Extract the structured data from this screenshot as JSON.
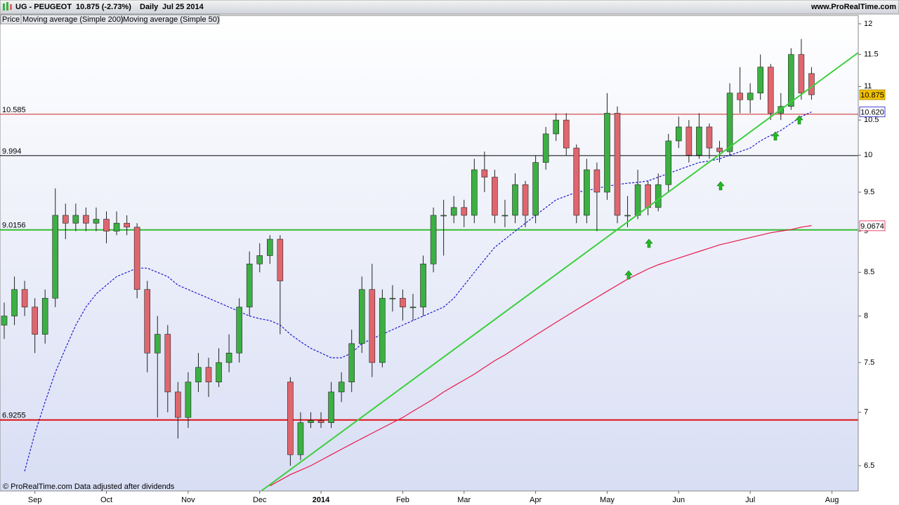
{
  "header": {
    "symbol": "UG - PEUGEOT",
    "quote": "10.875 (-2.73%)",
    "period": "Daily",
    "date": "Jul 25 2014",
    "site": "www.ProRealTime.com"
  },
  "footer": "© ProRealTime.com  Data adjusted after dividends",
  "chart_data": {
    "type": "candlestick",
    "log_scale": true,
    "ylim": [
      6.276,
      12.14
    ],
    "yticks": [
      6.5,
      7,
      7.5,
      8,
      8.5,
      9,
      9.5,
      10,
      10.5,
      11,
      11.5,
      12
    ],
    "categories": [
      null,
      null,
      null,
      "Sep",
      null,
      null,
      null,
      null,
      null,
      null,
      "Oct",
      null,
      null,
      null,
      null,
      null,
      null,
      null,
      "Nov",
      null,
      null,
      null,
      null,
      null,
      null,
      "Dec",
      null,
      null,
      null,
      null,
      null,
      "2014",
      null,
      null,
      null,
      null,
      null,
      null,
      null,
      "Feb",
      null,
      null,
      null,
      null,
      null,
      "Mar",
      null,
      null,
      null,
      null,
      null,
      null,
      "Apr",
      null,
      null,
      null,
      null,
      null,
      null,
      "May",
      null,
      null,
      null,
      null,
      null,
      null,
      "Jun",
      null,
      null,
      null,
      null,
      null,
      null,
      "Jul",
      null,
      null,
      null,
      null,
      null,
      null,
      null,
      "Aug"
    ],
    "candles": {
      "name": "Price",
      "up_color": "#3cb043",
      "down_color": "#e0666e",
      "open": [
        7.9,
        8.0,
        8.3,
        8.1,
        7.8,
        8.2,
        9.2,
        9.1,
        9.2,
        9.1,
        9.15,
        9.0,
        9.1,
        9.05,
        8.3,
        7.6,
        7.8,
        7.2,
        6.95,
        7.3,
        7.45,
        7.3,
        7.5,
        7.6,
        8.1,
        8.6,
        8.7,
        8.9,
        7.3,
        6.6,
        6.9,
        6.92,
        6.9,
        7.2,
        7.3,
        7.7,
        8.3,
        7.5,
        8.2,
        8.2,
        8.1,
        8.1,
        8.6,
        9.2,
        9.2,
        9.3,
        9.2,
        9.8,
        9.7,
        9.2,
        9.2,
        9.6,
        9.2,
        9.9,
        10.3,
        10.5,
        10.1,
        9.2,
        9.8,
        9.5,
        10.6,
        9.2,
        9.2,
        9.6,
        9.3,
        9.6,
        10.2,
        10.4,
        10.0,
        10.4,
        10.1,
        10.05,
        10.9,
        10.8,
        10.9,
        11.3,
        10.6,
        10.7,
        11.5,
        11.2,
        null,
        null
      ],
      "high": [
        8.15,
        8.45,
        8.4,
        8.2,
        8.3,
        9.55,
        9.35,
        9.35,
        9.3,
        9.3,
        9.25,
        9.25,
        9.2,
        9.1,
        8.4,
        8.0,
        7.9,
        7.3,
        7.4,
        7.6,
        7.55,
        7.65,
        7.8,
        8.2,
        8.75,
        8.85,
        8.95,
        8.95,
        7.35,
        7.0,
        7.0,
        7.0,
        7.3,
        7.4,
        7.85,
        8.45,
        8.6,
        8.3,
        8.35,
        8.3,
        8.25,
        8.7,
        9.3,
        9.4,
        9.45,
        9.4,
        9.95,
        10.05,
        9.8,
        9.4,
        9.75,
        9.65,
        10.0,
        10.4,
        10.6,
        10.6,
        10.15,
        9.95,
        9.9,
        10.9,
        10.7,
        9.45,
        9.8,
        9.65,
        9.75,
        10.3,
        10.55,
        10.5,
        10.6,
        10.45,
        10.2,
        11.05,
        11.3,
        11.05,
        11.5,
        11.35,
        10.9,
        11.6,
        11.75,
        11.3,
        null,
        null
      ],
      "low": [
        7.75,
        7.9,
        8.0,
        7.6,
        7.7,
        8.1,
        8.9,
        9.0,
        9.0,
        9.0,
        8.85,
        8.95,
        8.95,
        8.2,
        7.4,
        6.95,
        7.0,
        6.75,
        6.85,
        7.2,
        7.15,
        7.25,
        7.4,
        7.5,
        8.0,
        8.5,
        8.6,
        7.8,
        6.5,
        6.55,
        6.85,
        6.85,
        6.85,
        7.1,
        7.2,
        7.6,
        7.35,
        7.45,
        8.05,
        7.95,
        7.95,
        8.0,
        8.5,
        8.7,
        9.1,
        9.05,
        9.1,
        9.5,
        9.1,
        9.05,
        9.1,
        9.05,
        9.1,
        9.8,
        10.2,
        10.0,
        9.1,
        9.1,
        9.0,
        9.4,
        9.1,
        9.05,
        9.15,
        9.2,
        9.25,
        9.5,
        10.1,
        9.9,
        9.95,
        9.95,
        9.9,
        10.0,
        10.6,
        10.6,
        10.8,
        10.5,
        10.5,
        10.65,
        10.8,
        10.8,
        null,
        null
      ],
      "close": [
        8.0,
        8.3,
        8.1,
        7.8,
        8.2,
        9.2,
        9.1,
        9.2,
        9.1,
        9.15,
        9.0,
        9.1,
        9.05,
        8.3,
        7.6,
        7.8,
        7.2,
        6.95,
        7.3,
        7.45,
        7.3,
        7.5,
        7.6,
        8.1,
        8.6,
        8.7,
        8.9,
        8.4,
        6.6,
        6.9,
        6.92,
        6.9,
        7.2,
        7.3,
        7.7,
        8.3,
        7.5,
        8.2,
        8.2,
        8.1,
        8.1,
        8.6,
        9.2,
        9.2,
        9.3,
        9.2,
        9.8,
        9.7,
        9.2,
        9.2,
        9.6,
        9.2,
        9.9,
        10.3,
        10.5,
        10.1,
        9.2,
        9.8,
        9.5,
        10.6,
        9.2,
        9.2,
        9.6,
        9.3,
        9.6,
        10.2,
        10.4,
        10.0,
        10.4,
        10.1,
        10.05,
        10.9,
        10.8,
        10.9,
        11.3,
        10.6,
        10.7,
        11.5,
        10.9,
        10.875,
        null,
        null
      ]
    },
    "series": [
      {
        "name": "Moving average (Simple 200)",
        "color": "#e8194a",
        "dashed": false,
        "values": [
          null,
          null,
          null,
          null,
          null,
          null,
          null,
          null,
          null,
          null,
          null,
          null,
          null,
          null,
          null,
          null,
          null,
          null,
          null,
          null,
          null,
          null,
          null,
          null,
          null,
          null,
          6.32,
          6.37,
          6.42,
          6.46,
          6.5,
          6.55,
          6.6,
          6.65,
          6.7,
          6.75,
          6.8,
          6.85,
          6.9,
          6.95,
          7.01,
          7.07,
          7.13,
          7.2,
          7.26,
          7.32,
          7.38,
          7.45,
          7.52,
          7.58,
          7.65,
          7.72,
          7.79,
          7.86,
          7.93,
          8.0,
          8.07,
          8.14,
          8.21,
          8.28,
          8.35,
          8.42,
          8.48,
          8.54,
          8.59,
          8.63,
          8.67,
          8.71,
          8.75,
          8.79,
          8.83,
          8.86,
          8.89,
          8.92,
          8.95,
          8.98,
          9.0,
          9.02,
          9.05,
          9.07,
          null,
          null
        ]
      },
      {
        "name": "Moving average (Simple 50)",
        "color": "#1a1acc",
        "dashed": true,
        "values": [
          null,
          null,
          6.45,
          6.8,
          7.1,
          7.4,
          7.65,
          7.9,
          8.1,
          8.25,
          8.35,
          8.45,
          8.5,
          8.55,
          8.55,
          8.5,
          8.45,
          8.35,
          8.3,
          8.25,
          8.2,
          8.15,
          8.1,
          8.05,
          8.0,
          7.97,
          7.95,
          7.9,
          7.8,
          7.72,
          7.65,
          7.6,
          7.55,
          7.55,
          7.6,
          7.7,
          7.75,
          7.8,
          7.85,
          7.9,
          7.95,
          8.0,
          8.05,
          8.1,
          8.2,
          8.35,
          8.5,
          8.65,
          8.8,
          8.9,
          9.0,
          9.1,
          9.2,
          9.3,
          9.4,
          9.45,
          9.5,
          9.52,
          9.55,
          9.58,
          9.6,
          9.62,
          9.63,
          9.65,
          9.7,
          9.75,
          9.8,
          9.85,
          9.9,
          9.92,
          9.95,
          10.0,
          10.05,
          10.1,
          10.2,
          10.28,
          10.35,
          10.45,
          10.55,
          10.62,
          null,
          null
        ]
      }
    ],
    "levels": [
      {
        "value": 10.585,
        "color": "#cc2222",
        "width": 1
      },
      {
        "value": 9.994,
        "color": "#000000",
        "width": 1
      },
      {
        "value": 9.0156,
        "color": "#33bb33",
        "width": 2
      },
      {
        "value": 6.9255,
        "color": "#dd1111",
        "width": 2
      }
    ],
    "badges": [
      {
        "value": 10.875,
        "background": "#f2c200",
        "color": "#000000"
      },
      {
        "value": 10.62,
        "label": "10.620",
        "background": "#ffffff",
        "color": "#1a1acc"
      },
      {
        "value": 9.0674,
        "background": "#ffffff",
        "color": "#e8194a"
      }
    ]
  }
}
